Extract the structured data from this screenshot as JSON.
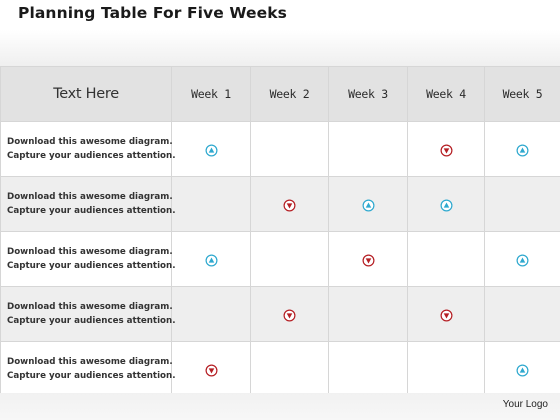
{
  "title": "Planning Table For Five Weeks",
  "footer": {
    "logo_text": "Your Logo"
  },
  "colors": {
    "up": "#2fa9cf",
    "down": "#b51f24"
  },
  "table": {
    "header_label": "Text Here",
    "weeks": [
      "Week 1",
      "Week 2",
      "Week 3",
      "Week 4",
      "Week 5"
    ],
    "rows": [
      {
        "line1": "Download this awesome diagram.",
        "line2": "Capture your audiences attention.",
        "marks": [
          "up",
          "",
          "",
          "down",
          "up"
        ]
      },
      {
        "line1": "Download this awesome diagram.",
        "line2": "Capture your audiences attention.",
        "marks": [
          "",
          "down",
          "up",
          "up",
          ""
        ]
      },
      {
        "line1": "Download this awesome diagram.",
        "line2": "Capture your audiences attention.",
        "marks": [
          "up",
          "",
          "down",
          "",
          "up"
        ]
      },
      {
        "line1": "Download this awesome diagram.",
        "line2": "Capture your audiences attention.",
        "marks": [
          "",
          "down",
          "",
          "down",
          ""
        ]
      },
      {
        "line1": "Download this awesome diagram.",
        "line2": "Capture your audiences attention.",
        "marks": [
          "down",
          "",
          "",
          "",
          "up"
        ]
      }
    ]
  }
}
